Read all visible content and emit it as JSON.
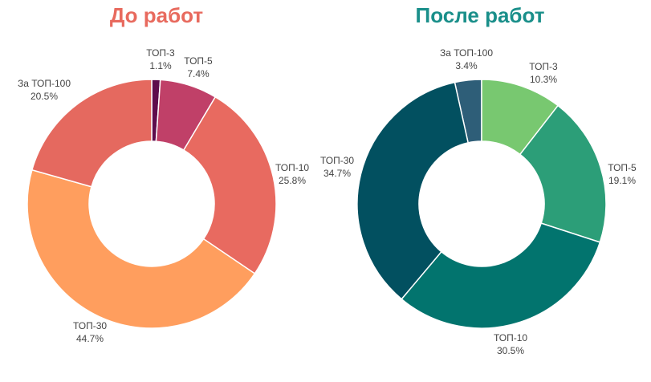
{
  "chart_data": [
    {
      "type": "pie",
      "title": "До работ",
      "title_color": "#e86a5e",
      "categories": [
        "ТОП-3",
        "ТОП-5",
        "ТОП-10",
        "ТОП-30",
        "За ТОП-100"
      ],
      "values": [
        1.1,
        7.4,
        25.8,
        44.7,
        20.5
      ],
      "value_labels": [
        "1.1%",
        "7.4%",
        "25.8%",
        "44.7%",
        "20.5%"
      ],
      "colors": [
        "#5e0c4c",
        "#c04068",
        "#e86a60",
        "#ff9e5e",
        "#e5695f"
      ],
      "extra_colors": {
        "top3_highlight": "#8a1a5c"
      }
    },
    {
      "type": "pie",
      "title": "После работ",
      "title_color": "#1a8f8a",
      "categories": [
        "За ТОП-100",
        "ТОП-3",
        "ТОП-5",
        "ТОП-10",
        "ТОП-30"
      ],
      "values": [
        3.4,
        10.3,
        19.1,
        30.5,
        34.7
      ],
      "value_labels": [
        "3.4%",
        "10.3%",
        "19.1%",
        "30.5%",
        "34.7%"
      ],
      "colors": [
        "#2e5e78",
        "#78c870",
        "#2c9e78",
        "#02746e",
        "#025060"
      ],
      "extra_colors": {
        "top100_sliver": "#cde068"
      }
    }
  ]
}
